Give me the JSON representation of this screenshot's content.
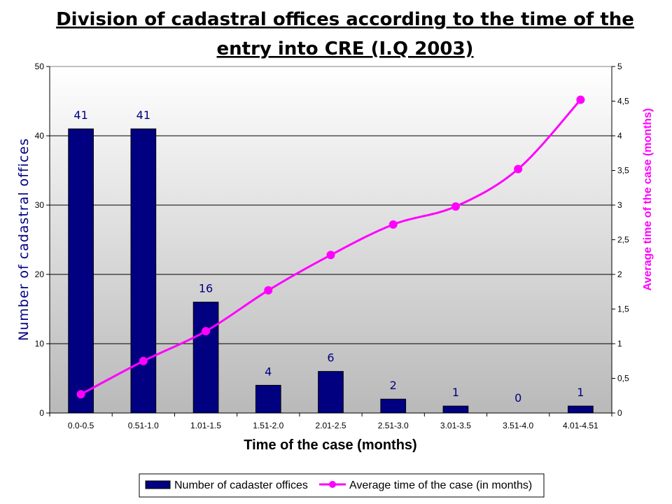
{
  "chart_data": {
    "type": "bar",
    "title_lines": [
      "Division of cadastral offices according to the time of the",
      "entry into CRE (I.Q 2003)"
    ],
    "xlabel": "Time of the case (months)",
    "ylabel": "Number of cadastral offices",
    "y2label": "Average time of the case (months)",
    "categories": [
      "0.0-0.5",
      "0.51-1.0",
      "1.01-1.5",
      "1.51-2.0",
      "2.01-2.5",
      "2.51-3.0",
      "3.01-3.5",
      "3.51-4.0",
      "4.01-4.51"
    ],
    "ylim": [
      0,
      50
    ],
    "yticks": [
      "0",
      "10",
      "20",
      "30",
      "40",
      "50"
    ],
    "y2lim": [
      0,
      5
    ],
    "y2ticks": [
      "0",
      "0,5",
      "1",
      "1,5",
      "2",
      "2,5",
      "3",
      "3,5",
      "4",
      "4,5",
      "5"
    ],
    "grid": true,
    "legend_position": "bottom",
    "series": [
      {
        "name": "Number of cadaster offices",
        "type": "bar",
        "axis": "left",
        "color": "#000080",
        "values": [
          41,
          41,
          16,
          4,
          6,
          2,
          1,
          0,
          1
        ],
        "labels": [
          "41",
          "41",
          "16",
          "4",
          "6",
          "2",
          "1",
          "0",
          "1"
        ]
      },
      {
        "name": "Average time of the case (in months)",
        "type": "line",
        "axis": "right",
        "color": "#ff00ff",
        "values": [
          0.27,
          0.75,
          1.18,
          1.77,
          2.28,
          2.72,
          2.98,
          3.52,
          4.52
        ]
      }
    ]
  }
}
